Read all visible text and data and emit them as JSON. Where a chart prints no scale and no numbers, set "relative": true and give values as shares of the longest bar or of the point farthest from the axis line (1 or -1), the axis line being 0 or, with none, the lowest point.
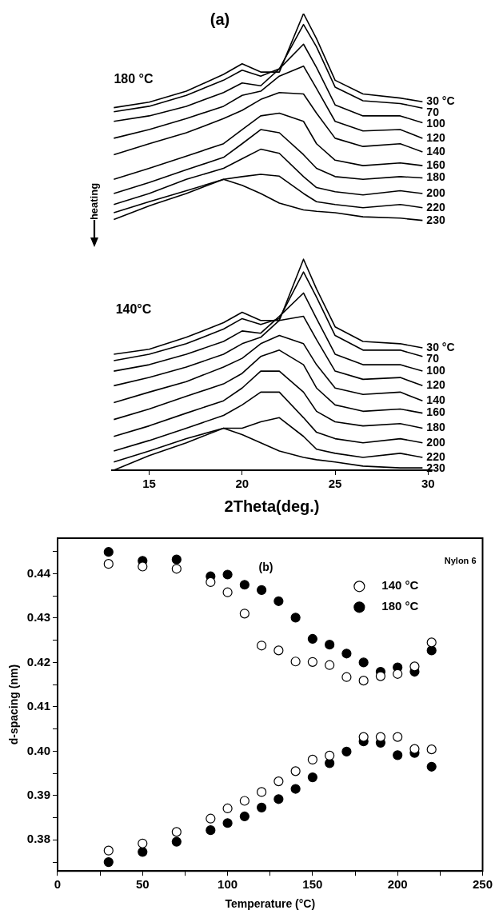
{
  "chart_data": [
    {
      "type": "line",
      "relative": true,
      "annotations": [
        "(a)",
        "180 °C",
        "heating",
        "140°C"
      ],
      "xlabel": "2Theta(deg.)",
      "xlim": [
        13,
        30.2
      ],
      "xticks": [
        15,
        20,
        25,
        30
      ],
      "tick_labels": "x",
      "marker": "none",
      "x": [
        13.1,
        15,
        17,
        19,
        20,
        21,
        22,
        23.3,
        24,
        25,
        26.5,
        28.5,
        29.7
      ],
      "series": [
        {
          "name": "30 °C",
          "color": "#000000",
          "values": [
            0.794,
            0.806,
            0.83,
            0.867,
            0.89,
            0.872,
            0.872,
            1.0,
            0.945,
            0.854,
            0.824,
            0.815,
            0.807
          ]
        },
        {
          "name": "70",
          "color": "#000000",
          "values": [
            0.785,
            0.797,
            0.821,
            0.854,
            0.876,
            0.863,
            0.879,
            0.976,
            0.927,
            0.839,
            0.809,
            0.803,
            0.793
          ]
        },
        {
          "name": "100",
          "color": "#000000",
          "values": [
            0.764,
            0.776,
            0.797,
            0.827,
            0.848,
            0.842,
            0.879,
            0.933,
            0.882,
            0.8,
            0.776,
            0.776,
            0.761
          ]
        },
        {
          "name": "120",
          "color": "#000000",
          "values": [
            0.727,
            0.746,
            0.77,
            0.797,
            0.821,
            0.83,
            0.863,
            0.885,
            0.836,
            0.764,
            0.743,
            0.746,
            0.727
          ]
        },
        {
          "name": "140",
          "color": "#000000",
          "values": [
            0.691,
            0.715,
            0.739,
            0.77,
            0.788,
            0.812,
            0.827,
            0.824,
            0.782,
            0.727,
            0.709,
            0.715,
            0.697
          ]
        },
        {
          "name": "160",
          "color": "#000000",
          "values": [
            0.637,
            0.661,
            0.688,
            0.715,
            0.746,
            0.776,
            0.782,
            0.764,
            0.715,
            0.679,
            0.667,
            0.673,
            0.667
          ]
        },
        {
          "name": "180",
          "color": "#000000",
          "values": [
            0.606,
            0.63,
            0.658,
            0.685,
            0.715,
            0.746,
            0.739,
            0.691,
            0.661,
            0.643,
            0.637,
            0.643,
            0.64
          ]
        },
        {
          "name": "200",
          "color": "#000000",
          "values": [
            0.582,
            0.606,
            0.637,
            0.661,
            0.682,
            0.703,
            0.694,
            0.643,
            0.619,
            0.61,
            0.603,
            0.612,
            0.606
          ]
        },
        {
          "name": "220",
          "color": "#000000",
          "values": [
            0.564,
            0.588,
            0.612,
            0.637,
            0.643,
            0.648,
            0.644,
            0.606,
            0.588,
            0.582,
            0.575,
            0.582,
            0.575
          ]
        },
        {
          "name": "230",
          "color": "#000000",
          "values": [
            0.549,
            0.579,
            0.606,
            0.637,
            0.624,
            0.606,
            0.585,
            0.57,
            0.567,
            0.564,
            0.555,
            0.552,
            0.547
          ]
        },
        {
          "name": "30 °C",
          "color": "#000000",
          "values": [
            0.254,
            0.265,
            0.291,
            0.323,
            0.346,
            0.328,
            0.328,
            0.462,
            0.397,
            0.314,
            0.282,
            0.277,
            0.268
          ]
        },
        {
          "name": "70",
          "color": "#000000",
          "values": [
            0.24,
            0.254,
            0.277,
            0.309,
            0.332,
            0.319,
            0.332,
            0.434,
            0.379,
            0.295,
            0.263,
            0.263,
            0.249
          ]
        },
        {
          "name": "100",
          "color": "#000000",
          "values": [
            0.217,
            0.231,
            0.254,
            0.282,
            0.305,
            0.3,
            0.337,
            0.388,
            0.332,
            0.254,
            0.231,
            0.231,
            0.217
          ]
        },
        {
          "name": "120",
          "color": "#000000",
          "values": [
            0.185,
            0.203,
            0.226,
            0.254,
            0.277,
            0.291,
            0.328,
            0.337,
            0.286,
            0.217,
            0.199,
            0.203,
            0.185
          ]
        },
        {
          "name": "140",
          "color": "#000000",
          "values": [
            0.148,
            0.171,
            0.194,
            0.226,
            0.245,
            0.277,
            0.295,
            0.277,
            0.231,
            0.18,
            0.166,
            0.171,
            0.152
          ]
        },
        {
          "name": "160",
          "color": "#000000",
          "values": [
            0.111,
            0.134,
            0.162,
            0.189,
            0.212,
            0.249,
            0.263,
            0.231,
            0.18,
            0.143,
            0.129,
            0.134,
            0.125
          ]
        },
        {
          "name": "180",
          "color": "#000000",
          "values": [
            0.074,
            0.097,
            0.125,
            0.152,
            0.18,
            0.217,
            0.217,
            0.171,
            0.129,
            0.106,
            0.097,
            0.102,
            0.092
          ]
        },
        {
          "name": "200",
          "color": "#000000",
          "values": [
            0.042,
            0.065,
            0.092,
            0.12,
            0.143,
            0.171,
            0.171,
            0.115,
            0.083,
            0.069,
            0.06,
            0.069,
            0.06
          ]
        },
        {
          "name": "220",
          "color": "#000000",
          "values": [
            0.018,
            0.042,
            0.069,
            0.092,
            0.092,
            0.106,
            0.115,
            0.074,
            0.046,
            0.037,
            0.028,
            0.037,
            0.028
          ]
        },
        {
          "name": "230",
          "color": "#000000",
          "values": [
            0,
            0.032,
            0.06,
            0.092,
            0.078,
            0.06,
            0.042,
            0.028,
            0.023,
            0.018,
            0.009,
            0.005,
            0.005
          ]
        }
      ]
    },
    {
      "type": "scatter",
      "annotations": [
        "(b)",
        "Nylon 6"
      ],
      "xlabel": "Temperature (°C)",
      "ylabel": "d-spacing (nm)",
      "xlim": [
        0,
        250
      ],
      "ylim": [
        0.373,
        0.448
      ],
      "xticks": [
        0,
        {
          "value": 25,
          "label": null
        },
        50,
        {
          "value": 75,
          "label": null
        },
        100,
        {
          "value": 125,
          "label": null
        },
        150,
        {
          "value": 175,
          "label": null
        },
        200,
        {
          "value": 225,
          "label": null
        },
        250
      ],
      "yticks": [
        {
          "value": 0.375,
          "label": null
        },
        {
          "value": 0.38,
          "label": "0.38"
        },
        {
          "value": 0.385,
          "label": null
        },
        {
          "value": 0.39,
          "label": "0.39"
        },
        {
          "value": 0.395,
          "label": null
        },
        {
          "value": 0.4,
          "label": "0.40"
        },
        {
          "value": 0.405,
          "label": null
        },
        {
          "value": 0.41,
          "label": "0.41"
        },
        {
          "value": 0.415,
          "label": null
        },
        {
          "value": 0.42,
          "label": "0.42"
        },
        {
          "value": 0.425,
          "label": null
        },
        {
          "value": 0.43,
          "label": "0.43"
        },
        {
          "value": 0.435,
          "label": null
        },
        {
          "value": 0.44,
          "label": "0.44"
        },
        {
          "value": 0.445,
          "label": null
        }
      ],
      "grid": false,
      "legend": "top right",
      "marker": "circle",
      "series": [
        {
          "name": "140 °C",
          "color": "#ffffff",
          "x": [
            30,
            50,
            70,
            90,
            100,
            110,
            120,
            130,
            140,
            150,
            160,
            170,
            180,
            190,
            200,
            210,
            220,
            30,
            50,
            70,
            90,
            100,
            110,
            120,
            130,
            140,
            150,
            160,
            170,
            180,
            190,
            200,
            210,
            220
          ],
          "values": [
            0.4422,
            0.4416,
            0.4411,
            0.4381,
            0.4358,
            0.431,
            0.4238,
            0.4227,
            0.4202,
            0.4201,
            0.4194,
            0.4167,
            0.4159,
            0.4169,
            0.4174,
            0.4191,
            0.4245,
            0.3776,
            0.3792,
            0.3818,
            0.3848,
            0.3871,
            0.3888,
            0.3908,
            0.3932,
            0.3955,
            0.3981,
            0.399,
            null,
            0.4032,
            0.4032,
            0.4032,
            0.4005,
            0.4004
          ]
        },
        {
          "name": "180 °C",
          "color": "#000000",
          "x": [
            30,
            50,
            70,
            90,
            100,
            110,
            120,
            130,
            140,
            150,
            160,
            170,
            180,
            190,
            200,
            210,
            220,
            30,
            50,
            70,
            90,
            100,
            110,
            120,
            130,
            140,
            150,
            160,
            170,
            180,
            190,
            200,
            210,
            220
          ],
          "values": [
            0.4449,
            0.4429,
            0.4432,
            0.4394,
            0.4398,
            0.4375,
            0.4363,
            0.4338,
            0.4301,
            0.4253,
            0.424,
            0.422,
            0.42,
            0.4179,
            0.4189,
            0.4179,
            0.4227,
            0.375,
            0.3773,
            0.3796,
            0.3822,
            0.3838,
            0.3853,
            0.3873,
            0.3892,
            0.3915,
            0.3941,
            0.3973,
            0.3999,
            0.4022,
            0.4019,
            0.3991,
            0.3996,
            0.3965
          ]
        }
      ]
    }
  ]
}
